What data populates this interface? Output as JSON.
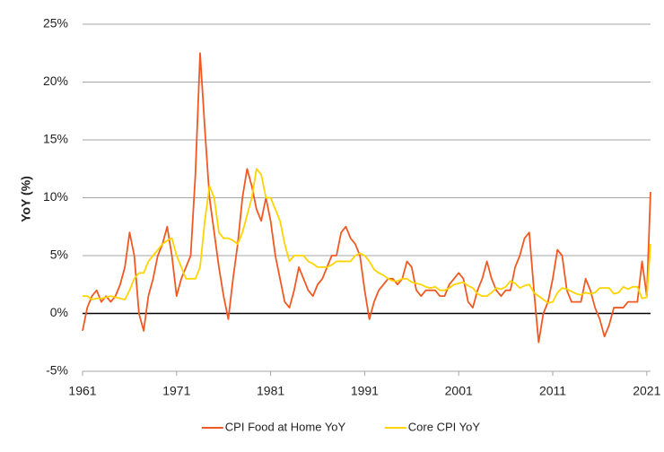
{
  "chart_data": {
    "type": "line",
    "y_label": "YoY (%)",
    "xlim": [
      1961,
      2021.4
    ],
    "xticks": [
      1961,
      1971,
      1981,
      1991,
      2001,
      2011,
      2021
    ],
    "ylim": [
      -5,
      25
    ],
    "yticks": [
      {
        "value": -5,
        "label": "-5%"
      },
      {
        "value": 0,
        "label": "0%"
      },
      {
        "value": 5,
        "label": "5%"
      },
      {
        "value": 10,
        "label": "10%"
      },
      {
        "value": 15,
        "label": "15%"
      },
      {
        "value": 20,
        "label": "20%"
      },
      {
        "value": 25,
        "label": "25%"
      }
    ],
    "grid": true,
    "legend": "bottom",
    "x": [
      1961,
      1961.5,
      1962,
      1962.5,
      1963,
      1963.5,
      1964,
      1964.5,
      1965,
      1965.5,
      1966,
      1966.5,
      1967,
      1967.5,
      1968,
      1968.5,
      1969,
      1969.5,
      1970,
      1970.5,
      1971,
      1971.5,
      1972,
      1972.5,
      1973,
      1973.5,
      1974,
      1974.5,
      1975,
      1975.5,
      1976,
      1976.5,
      1977,
      1977.5,
      1978,
      1978.5,
      1979,
      1979.5,
      1980,
      1980.5,
      1981,
      1981.5,
      1982,
      1982.5,
      1983,
      1983.5,
      1984,
      1984.5,
      1985,
      1985.5,
      1986,
      1986.5,
      1987,
      1987.5,
      1988,
      1988.5,
      1989,
      1989.5,
      1990,
      1990.5,
      1991,
      1991.5,
      1992,
      1992.5,
      1993,
      1993.5,
      1994,
      1994.5,
      1995,
      1995.5,
      1996,
      1996.5,
      1997,
      1997.5,
      1998,
      1998.5,
      1999,
      1999.5,
      2000,
      2000.5,
      2001,
      2001.5,
      2002,
      2002.5,
      2003,
      2003.5,
      2004,
      2004.5,
      2005,
      2005.5,
      2006,
      2006.5,
      2007,
      2007.5,
      2008,
      2008.5,
      2009,
      2009.5,
      2010,
      2010.5,
      2011,
      2011.5,
      2012,
      2012.5,
      2013,
      2013.5,
      2014,
      2014.5,
      2015,
      2015.5,
      2016,
      2016.5,
      2017,
      2017.5,
      2018,
      2018.5,
      2019,
      2019.5,
      2020,
      2020.5,
      2021,
      2021.4
    ],
    "series": [
      {
        "name": "CPI Food at Home YoY",
        "color": "#f05a22",
        "values": [
          -1.5,
          0.5,
          1.5,
          2,
          1,
          1.5,
          1,
          1.5,
          2.5,
          4,
          7,
          5,
          0,
          -1.5,
          1.5,
          3,
          5,
          6,
          7.5,
          5,
          1.5,
          3,
          4,
          5,
          12,
          22.5,
          16,
          10,
          7,
          4,
          1.5,
          -0.5,
          3,
          6,
          10,
          12.5,
          11,
          9,
          8,
          10,
          8,
          5,
          3,
          1,
          0.5,
          2,
          4,
          3,
          2,
          1.5,
          2.5,
          3,
          4,
          5,
          5,
          7,
          7.5,
          6.5,
          6,
          5,
          2,
          -0.5,
          1,
          2,
          2.5,
          3,
          3,
          2.5,
          3,
          4.5,
          4,
          2,
          1.5,
          2,
          2,
          2,
          1.5,
          1.5,
          2.5,
          3,
          3.5,
          3,
          1,
          0.5,
          2,
          3,
          4.5,
          3,
          2,
          1.5,
          2,
          2,
          4,
          5,
          6.5,
          7,
          2,
          -2.5,
          0,
          1,
          3,
          5.5,
          5,
          2,
          1,
          1,
          1,
          3,
          2,
          0.5,
          -0.5,
          -2,
          -1,
          0.5,
          0.5,
          0.5,
          1,
          1,
          1,
          4.5,
          1.5,
          10.5
        ]
      },
      {
        "name": "Core CPI YoY",
        "color": "#ffd400",
        "values": [
          1.5,
          1.5,
          1.2,
          1.3,
          1.3,
          1.4,
          1.5,
          1.4,
          1.3,
          1.2,
          2,
          3,
          3.5,
          3.5,
          4.5,
          5,
          5.5,
          6,
          6.3,
          6.5,
          5,
          4,
          3,
          3,
          3,
          4,
          8,
          11,
          10,
          7,
          6.5,
          6.5,
          6.3,
          6,
          7,
          8.5,
          10,
          12.5,
          12,
          10,
          10,
          9,
          8,
          6,
          4.5,
          5,
          5,
          5,
          4.5,
          4.3,
          4,
          4,
          4,
          4.2,
          4.5,
          4.5,
          4.5,
          4.5,
          5,
          5.2,
          5,
          4.5,
          3.8,
          3.5,
          3.3,
          3,
          2.8,
          2.8,
          3,
          3,
          2.7,
          2.6,
          2.5,
          2.3,
          2.2,
          2.3,
          2,
          2,
          2.2,
          2.5,
          2.6,
          2.7,
          2.4,
          2.2,
          1.7,
          1.5,
          1.5,
          1.8,
          2.2,
          2.1,
          2.3,
          2.8,
          2.6,
          2.2,
          2.4,
          2.5,
          1.8,
          1.5,
          1.2,
          0.9,
          1,
          1.8,
          2.2,
          2.1,
          1.9,
          1.7,
          1.6,
          1.8,
          1.7,
          1.8,
          2.2,
          2.2,
          2.2,
          1.7,
          1.8,
          2.3,
          2.1,
          2.3,
          2.3,
          1.3,
          1.4,
          6
        ]
      }
    ]
  }
}
